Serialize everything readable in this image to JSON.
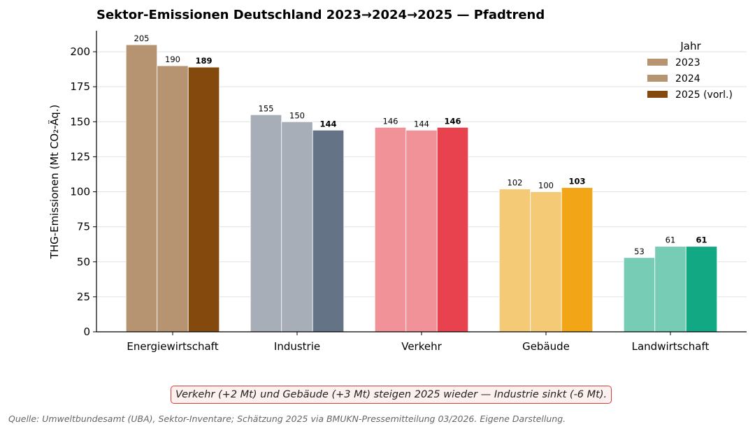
{
  "chart_data": {
    "type": "bar",
    "title": "Sektor-Emissionen Deutschland 2023→2024→2025 — Pfadtrend",
    "ylabel": "THG-Emissionen (Mt CO₂-Äq.)",
    "xlabel": "",
    "ylim": [
      0,
      215
    ],
    "yticks": [
      0,
      25,
      50,
      75,
      100,
      125,
      150,
      175,
      200
    ],
    "grid": "horizontal",
    "categories": [
      "Energiewirtschaft",
      "Industrie",
      "Verkehr",
      "Gebäude",
      "Landwirtschaft"
    ],
    "series": [
      {
        "name": "2023",
        "values": [
          205,
          155,
          146,
          102,
          53
        ]
      },
      {
        "name": "2024",
        "values": [
          190,
          150,
          144,
          100,
          61
        ]
      },
      {
        "name": "2025 (vorl.)",
        "values": [
          189,
          144,
          146,
          103,
          61
        ]
      }
    ],
    "colors": {
      "light": [
        "#b69472",
        "#a7aeb8",
        "#f09298",
        "#f5ca76",
        "#76ccb4"
      ],
      "dark": [
        "#83490d",
        "#647385",
        "#e8424f",
        "#f2a516",
        "#12a883"
      ]
    },
    "legend": {
      "title": "Jahr",
      "placement": "top-right",
      "colors": [
        "#b69472",
        "#b69472",
        "#83490d"
      ]
    }
  },
  "annotation": "Verkehr (+2 Mt) und Gebäude (+3 Mt) steigen 2025 wieder — Industrie sinkt (-6 Mt).",
  "source": "Quelle: Umweltbundesamt (UBA), Sektor-Inventare; Schätzung 2025 via BMUKN-Pressemitteilung 03/2026. Eigene Darstellung."
}
